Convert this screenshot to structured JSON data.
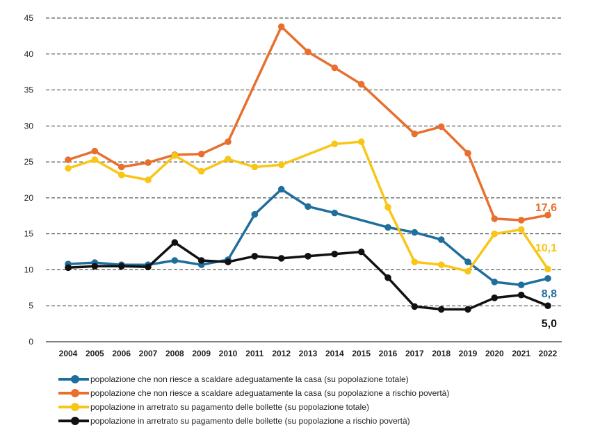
{
  "chart_data": {
    "type": "line",
    "title": "",
    "xlabel": "",
    "ylabel": "",
    "ylim": [
      0,
      45
    ],
    "yticks": [
      0,
      5,
      10,
      15,
      20,
      25,
      30,
      35,
      40,
      45
    ],
    "grid": "horizontal-dashed",
    "legend_position": "bottom",
    "categories": [
      "2004",
      "2005",
      "2006",
      "2007",
      "2008",
      "2009",
      "2010",
      "2011",
      "2012",
      "2013",
      "2014",
      "2015",
      "2016",
      "2017",
      "2018",
      "2019",
      "2020",
      "2021",
      "2022"
    ],
    "series": [
      {
        "name": "popolazione che non riesce a scaldare adeguatamente la casa (su popolazione totale)",
        "color": "#1f6e9c",
        "values": [
          10.8,
          11.0,
          10.7,
          10.7,
          11.3,
          10.7,
          11.4,
          17.7,
          21.2,
          18.8,
          17.9,
          null,
          15.9,
          15.2,
          14.2,
          11.1,
          8.3,
          7.9,
          8.8
        ],
        "end_label": "8,8"
      },
      {
        "name": "popolazione che non riesce a scaldare adeguatamente la casa (su popolazione a rischio povertà)",
        "color": "#e86f2e",
        "values": [
          25.3,
          26.5,
          24.3,
          24.9,
          26.0,
          26.1,
          27.8,
          null,
          43.8,
          40.3,
          38.1,
          35.8,
          null,
          28.9,
          29.9,
          26.2,
          17.1,
          16.9,
          17.6
        ],
        "end_label": "17,6"
      },
      {
        "name": "popolazione in arretrato su pagamento delle bollette (su popolazione totale)",
        "color": "#f8c617",
        "values": [
          24.1,
          25.3,
          23.2,
          22.5,
          25.9,
          23.7,
          25.4,
          24.3,
          24.6,
          null,
          27.5,
          27.8,
          18.7,
          11.1,
          10.7,
          9.8,
          15.0,
          15.6,
          10.1
        ],
        "end_label": "10,1"
      },
      {
        "name": "popolazione in arretrato su pagamento delle bollette (su popolazione a rischio povertà)",
        "color": "#111111",
        "values": [
          10.3,
          10.5,
          10.5,
          10.4,
          13.8,
          11.3,
          11.1,
          11.9,
          11.6,
          11.9,
          12.2,
          12.5,
          8.9,
          4.9,
          4.5,
          4.5,
          6.1,
          6.5,
          5.0
        ],
        "end_label": "5,0"
      }
    ]
  }
}
